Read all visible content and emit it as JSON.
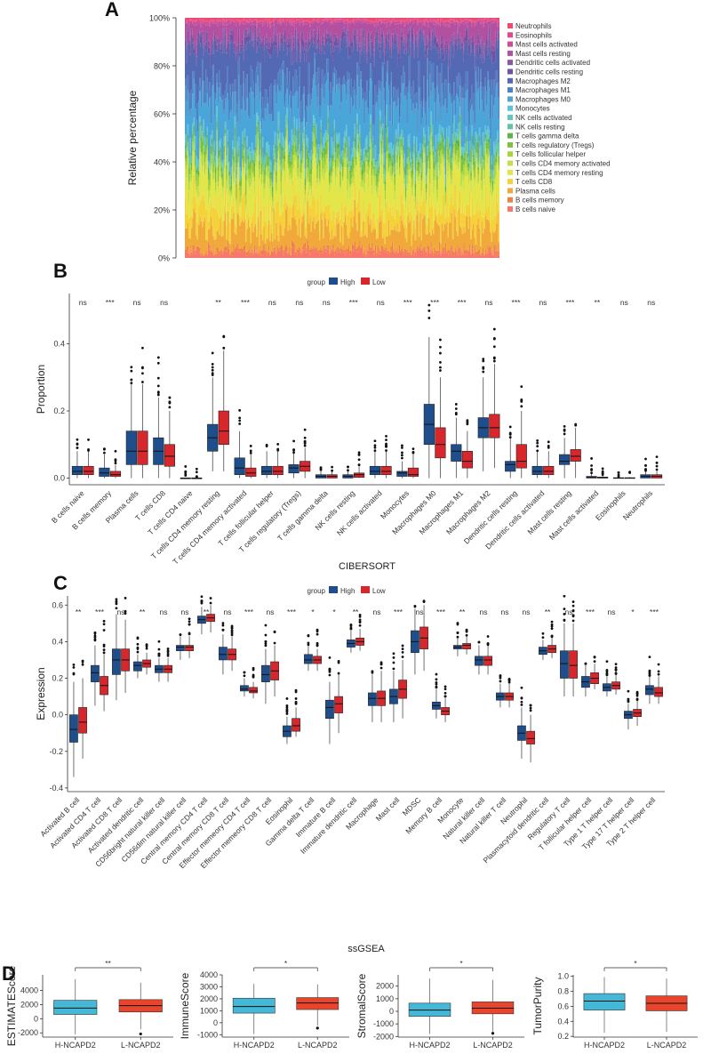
{
  "colors": {
    "high": "#1f4e8c",
    "low": "#d7262c",
    "h_ncapd2": "#45b8d8",
    "l_ncapd2": "#e8452c",
    "axis": "#333333"
  },
  "chart_data": [
    {
      "id": "A",
      "panel_label": "A",
      "type": "area",
      "ylabel": "Relative percentage",
      "ytick_labels": [
        "0%",
        "20%",
        "40%",
        "60%",
        "80%",
        "100%"
      ],
      "ylim": [
        0,
        100
      ],
      "n_samples": 260,
      "series": [
        {
          "name": "B cells naive",
          "color": "#f8766d",
          "mean": 2.5
        },
        {
          "name": "B cells memory",
          "color": "#ed8141",
          "mean": 1.5
        },
        {
          "name": "Plasma cells",
          "color": "#f2a93b",
          "mean": 9
        },
        {
          "name": "T cells CD8",
          "color": "#f5d13a",
          "mean": 8.5
        },
        {
          "name": "T cells CD4 memory resting",
          "color": "#e3e649",
          "mean": 12
        },
        {
          "name": "T cells CD4 memory activated",
          "color": "#c6e04a",
          "mean": 3
        },
        {
          "name": "T cells follicular helper",
          "color": "#a8d53c",
          "mean": 3
        },
        {
          "name": "T cells regulatory (Tregs)",
          "color": "#7cc242",
          "mean": 3
        },
        {
          "name": "T cells gamma delta",
          "color": "#5db54a",
          "mean": 1.5
        },
        {
          "name": "NK cells resting",
          "color": "#61c3a4",
          "mean": 1
        },
        {
          "name": "NK cells activated",
          "color": "#5fc8c3",
          "mean": 2
        },
        {
          "name": "Monocytes",
          "color": "#58c4e0",
          "mean": 1.5
        },
        {
          "name": "Macrophages M0",
          "color": "#4aa6d8",
          "mean": 17
        },
        {
          "name": "Macrophages M1",
          "color": "#4d83c6",
          "mean": 7
        },
        {
          "name": "Macrophages M2",
          "color": "#5469b3",
          "mean": 15
        },
        {
          "name": "Dendritic cells resting",
          "color": "#6b56a6",
          "mean": 3
        },
        {
          "name": "Dendritic cells activated",
          "color": "#8a55a5",
          "mean": 2
        },
        {
          "name": "Mast cells resting",
          "color": "#b450a0",
          "mean": 6
        },
        {
          "name": "Mast cells activated",
          "color": "#d14b98",
          "mean": 1
        },
        {
          "name": "Eosinophils",
          "color": "#e2488f",
          "mean": 0.3
        },
        {
          "name": "Neutrophils",
          "color": "#ef4a6c",
          "mean": 1
        }
      ]
    },
    {
      "id": "B",
      "panel_label": "B",
      "type": "box",
      "legend_title": "group",
      "legend": [
        "High",
        "Low"
      ],
      "ylabel": "Proportion",
      "xlabel": "CIBERSORT",
      "ylim": [
        -0.02,
        0.55
      ],
      "yticks": [
        0.0,
        0.2,
        0.4
      ],
      "ytick_labels": [
        "0.0",
        "0.2",
        "0.4"
      ],
      "categories": [
        "B cells naive",
        "B cells memory",
        "Plasma cells",
        "T cells CD8",
        "T cells CD4 naive",
        "T cells CD4 memory resting",
        "T cells CD4 memory activated",
        "T cells follicular helper",
        "T cells regulatory (Tregs)",
        "T cells gamma delta",
        "NK cells resting",
        "NK cells activated",
        "Monocytes",
        "Macrophages M0",
        "Macrophages M1",
        "Macrophages M2",
        "Dendritic cells resting",
        "Dendritic cells activated",
        "Mast cells resting",
        "Mast cells activated",
        "Eosinophils",
        "Neutrophils"
      ],
      "significance": [
        "ns",
        "***",
        "ns",
        "ns",
        "",
        "**",
        "***",
        "ns",
        "ns",
        "ns",
        "***",
        "ns",
        "***",
        "***",
        "***",
        "ns",
        "***",
        "ns",
        "***",
        "**",
        "ns",
        "ns"
      ],
      "high": [
        [
          0,
          0.01,
          0.02,
          0.035,
          0.08
        ],
        [
          0,
          0.005,
          0.015,
          0.03,
          0.07
        ],
        [
          0,
          0.04,
          0.08,
          0.14,
          0.28
        ],
        [
          0,
          0.04,
          0.08,
          0.12,
          0.24
        ],
        [
          0,
          0,
          0,
          0,
          0
        ],
        [
          0.02,
          0.08,
          0.12,
          0.16,
          0.3
        ],
        [
          0,
          0.01,
          0.03,
          0.06,
          0.14
        ],
        [
          0,
          0.01,
          0.02,
          0.035,
          0.08
        ],
        [
          0,
          0.015,
          0.03,
          0.04,
          0.075
        ],
        [
          0,
          0,
          0.005,
          0.01,
          0.02
        ],
        [
          0,
          0,
          0.005,
          0.01,
          0.02
        ],
        [
          0,
          0.01,
          0.02,
          0.035,
          0.08
        ],
        [
          0,
          0.005,
          0.015,
          0.02,
          0.05
        ],
        [
          0,
          0.1,
          0.16,
          0.22,
          0.42
        ],
        [
          0,
          0.05,
          0.08,
          0.1,
          0.18
        ],
        [
          0.02,
          0.12,
          0.15,
          0.18,
          0.3
        ],
        [
          0,
          0.02,
          0.04,
          0.05,
          0.12
        ],
        [
          0,
          0.01,
          0.02,
          0.035,
          0.08
        ],
        [
          0,
          0.04,
          0.05,
          0.07,
          0.12
        ],
        [
          0,
          0,
          0.002,
          0.005,
          0.012
        ],
        [
          0,
          0,
          0,
          0.001,
          0.003
        ],
        [
          0,
          0,
          0.005,
          0.01,
          0.02
        ]
      ],
      "low": [
        [
          0,
          0.01,
          0.02,
          0.035,
          0.08
        ],
        [
          0,
          0.005,
          0.01,
          0.02,
          0.04
        ],
        [
          0,
          0.04,
          0.08,
          0.14,
          0.28
        ],
        [
          0,
          0.035,
          0.065,
          0.1,
          0.2
        ],
        [
          0,
          0,
          0,
          0,
          0
        ],
        [
          0.02,
          0.1,
          0.14,
          0.2,
          0.38
        ],
        [
          0,
          0.005,
          0.015,
          0.03,
          0.07
        ],
        [
          0,
          0.01,
          0.02,
          0.035,
          0.08
        ],
        [
          0,
          0.02,
          0.035,
          0.05,
          0.09
        ],
        [
          0,
          0,
          0.005,
          0.01,
          0.02
        ],
        [
          0,
          0.002,
          0.01,
          0.015,
          0.035
        ],
        [
          0,
          0.01,
          0.02,
          0.035,
          0.08
        ],
        [
          0,
          0.005,
          0.01,
          0.03,
          0.07
        ],
        [
          0,
          0.06,
          0.1,
          0.15,
          0.3
        ],
        [
          0,
          0.03,
          0.05,
          0.08,
          0.14
        ],
        [
          0.03,
          0.12,
          0.15,
          0.19,
          0.34
        ],
        [
          0,
          0.03,
          0.05,
          0.1,
          0.2
        ],
        [
          0,
          0.01,
          0.02,
          0.035,
          0.08
        ],
        [
          0,
          0.05,
          0.065,
          0.085,
          0.15
        ],
        [
          0,
          0,
          0.001,
          0.003,
          0.008
        ],
        [
          0,
          0,
          0,
          0.001,
          0.003
        ],
        [
          0,
          0,
          0.005,
          0.01,
          0.02
        ]
      ]
    },
    {
      "id": "C",
      "panel_label": "C",
      "type": "box",
      "legend_title": "group",
      "legend": [
        "High",
        "Low"
      ],
      "ylabel": "Expression",
      "xlabel": "ssGSEA",
      "ylim": [
        -0.42,
        0.65
      ],
      "yticks": [
        -0.4,
        -0.2,
        0.0,
        0.2,
        0.4,
        0.6
      ],
      "ytick_labels": [
        "-0.4",
        "-0.2",
        "0.0",
        "0.2",
        "0.4",
        "0.6"
      ],
      "categories": [
        "Activated B cell",
        "Activated CD4 T cell",
        "Activated CD8 T cell",
        "Activated dendritic cell",
        "CD56bright natural killer cell",
        "CD56dim natural killer cell",
        "Central memory CD4 T cell",
        "Central memory CD8 T cell",
        "Effector memeory CD4 T cell",
        "Effector memeory CD8 T cell",
        "Eosinophil",
        "Gamma delta T cell",
        "Immature  B cell",
        "Immature dendritic cell",
        "Macrophage",
        "Mast cell",
        "MDSC",
        "Memory B cell",
        "Monocyte",
        "Natural killer cell",
        "Natural killer T cell",
        "Neutrophil",
        "Plasmacytoid dendritic cell",
        "Regulatory T cell",
        "T follicular helper cell",
        "Type 1 T helper cell",
        "Type 17 T helper cell",
        "Type 2 T helper cell"
      ],
      "significance": [
        "**",
        "***",
        "ns",
        "**",
        "ns",
        "ns",
        "**",
        "ns",
        "***",
        "ns",
        "***",
        "*",
        "*",
        "**",
        "ns",
        "***",
        "ns",
        "***",
        "**",
        "ns",
        "ns",
        "ns",
        "**",
        "ns",
        "***",
        "ns",
        "*",
        "***"
      ],
      "high": [
        [
          -0.34,
          -0.15,
          -0.08,
          0.0,
          0.18
        ],
        [
          0.05,
          0.18,
          0.23,
          0.27,
          0.38
        ],
        [
          0.08,
          0.22,
          0.3,
          0.36,
          0.55
        ],
        [
          0.2,
          0.24,
          0.27,
          0.29,
          0.33
        ],
        [
          0.18,
          0.23,
          0.25,
          0.27,
          0.31
        ],
        [
          0.3,
          0.35,
          0.37,
          0.38,
          0.43
        ],
        [
          0.44,
          0.5,
          0.52,
          0.54,
          0.59
        ],
        [
          0.22,
          0.3,
          0.33,
          0.37,
          0.44
        ],
        [
          0.1,
          0.13,
          0.14,
          0.16,
          0.2
        ],
        [
          0.06,
          0.18,
          0.22,
          0.27,
          0.36
        ],
        [
          -0.16,
          -0.12,
          -0.09,
          -0.06,
          -0.01
        ],
        [
          0.24,
          0.28,
          0.3,
          0.33,
          0.38
        ],
        [
          -0.16,
          -0.02,
          0.04,
          0.08,
          0.18
        ],
        [
          0.34,
          0.37,
          0.39,
          0.41,
          0.46
        ],
        [
          -0.04,
          0.05,
          0.09,
          0.12,
          0.22
        ],
        [
          -0.04,
          0.06,
          0.1,
          0.14,
          0.24
        ],
        [
          0.22,
          0.34,
          0.4,
          0.46,
          0.58
        ],
        [
          -0.02,
          0.03,
          0.05,
          0.07,
          0.14
        ],
        [
          0.32,
          0.36,
          0.37,
          0.38,
          0.42
        ],
        [
          0.22,
          0.27,
          0.3,
          0.32,
          0.38
        ],
        [
          0.04,
          0.08,
          0.1,
          0.12,
          0.17
        ],
        [
          -0.24,
          -0.14,
          -0.1,
          -0.06,
          0.04
        ],
        [
          0.3,
          0.33,
          0.35,
          0.37,
          0.41
        ],
        [
          0.1,
          0.2,
          0.28,
          0.35,
          0.5
        ],
        [
          0.1,
          0.15,
          0.18,
          0.21,
          0.27
        ],
        [
          0.1,
          0.13,
          0.15,
          0.17,
          0.21
        ],
        [
          -0.08,
          -0.02,
          0.0,
          0.02,
          0.06
        ],
        [
          0.06,
          0.11,
          0.14,
          0.16,
          0.21
        ]
      ],
      "low": [
        [
          -0.24,
          -0.1,
          -0.04,
          0.04,
          0.2
        ],
        [
          0.02,
          0.11,
          0.16,
          0.21,
          0.33
        ],
        [
          0.12,
          0.24,
          0.3,
          0.36,
          0.52
        ],
        [
          0.22,
          0.26,
          0.28,
          0.3,
          0.34
        ],
        [
          0.18,
          0.23,
          0.25,
          0.27,
          0.31
        ],
        [
          0.31,
          0.35,
          0.37,
          0.38,
          0.43
        ],
        [
          0.45,
          0.51,
          0.53,
          0.55,
          0.6
        ],
        [
          0.24,
          0.3,
          0.33,
          0.36,
          0.43
        ],
        [
          0.09,
          0.12,
          0.13,
          0.15,
          0.18
        ],
        [
          0.1,
          0.19,
          0.24,
          0.29,
          0.38
        ],
        [
          -0.12,
          -0.09,
          -0.06,
          -0.02,
          0.04
        ],
        [
          0.24,
          0.28,
          0.3,
          0.32,
          0.36
        ],
        [
          -0.1,
          0.01,
          0.06,
          0.1,
          0.22
        ],
        [
          0.35,
          0.38,
          0.4,
          0.42,
          0.47
        ],
        [
          -0.04,
          0.05,
          0.09,
          0.13,
          0.24
        ],
        [
          -0.02,
          0.09,
          0.14,
          0.19,
          0.3
        ],
        [
          0.24,
          0.36,
          0.42,
          0.48,
          0.6
        ],
        [
          -0.04,
          0.0,
          0.02,
          0.04,
          0.09
        ],
        [
          0.33,
          0.36,
          0.38,
          0.39,
          0.43
        ],
        [
          0.22,
          0.27,
          0.3,
          0.32,
          0.38
        ],
        [
          0.04,
          0.08,
          0.1,
          0.12,
          0.17
        ],
        [
          -0.26,
          -0.16,
          -0.13,
          -0.09,
          0.0
        ],
        [
          0.31,
          0.34,
          0.36,
          0.38,
          0.42
        ],
        [
          0.1,
          0.2,
          0.27,
          0.35,
          0.5
        ],
        [
          0.14,
          0.17,
          0.2,
          0.23,
          0.28
        ],
        [
          0.11,
          0.14,
          0.16,
          0.18,
          0.22
        ],
        [
          -0.06,
          -0.01,
          0.01,
          0.03,
          0.08
        ],
        [
          0.06,
          0.1,
          0.12,
          0.15,
          0.21
        ]
      ]
    },
    {
      "id": "D1",
      "panel_label": "D",
      "type": "box",
      "ylabel": "ESTIMATEScore",
      "categories": [
        "H-NCAPD2",
        "L-NCAPD2"
      ],
      "significance": "**",
      "ylim": [
        -2600,
        6200
      ],
      "yticks": [
        -2000,
        0,
        2000,
        4000
      ],
      "ytick_labels": [
        "-2000",
        "0",
        "2000",
        "4000"
      ],
      "boxes": [
        [
          -2200,
          600,
          1500,
          2600,
          5600
        ],
        [
          -1500,
          950,
          1850,
          2700,
          5100
        ]
      ],
      "outliers": [
        [],
        [
          -2150
        ]
      ]
    },
    {
      "id": "D2",
      "type": "box",
      "ylabel": "ImmuneScore",
      "categories": [
        "H-NCAPD2",
        "L-NCAPD2"
      ],
      "significance": "*",
      "ylim": [
        -1200,
        4000
      ],
      "yticks": [
        -1000,
        0,
        1000,
        2000,
        3000,
        4000
      ],
      "ytick_labels": [
        "-1000",
        "0",
        "1000",
        "2000",
        "3000",
        "4000"
      ],
      "boxes": [
        [
          -950,
          800,
          1350,
          2050,
          3250
        ],
        [
          -250,
          1100,
          1650,
          2100,
          3200
        ]
      ],
      "outliers": [
        [],
        [
          -450
        ]
      ]
    },
    {
      "id": "D3",
      "type": "box",
      "ylabel": "StromalScore",
      "categories": [
        "H-NCAPD2",
        "L-NCAPD2"
      ],
      "significance": "*",
      "ylim": [
        -2050,
        2900
      ],
      "yticks": [
        -2000,
        -1000,
        0,
        1000,
        2000
      ],
      "ytick_labels": [
        "-2000",
        "-1000",
        "0",
        "1000",
        "2000"
      ],
      "boxes": [
        [
          -1800,
          -400,
          100,
          650,
          2600
        ],
        [
          -1600,
          -200,
          250,
          750,
          2500
        ]
      ],
      "outliers": [
        [],
        [
          -1750
        ]
      ]
    },
    {
      "id": "D4",
      "type": "box",
      "ylabel": "TumorPurity",
      "categories": [
        "H-NCAPD2",
        "L-NCAPD2"
      ],
      "significance": "*",
      "ylim": [
        0.19,
        1.02
      ],
      "yticks": [
        0.2,
        0.4,
        0.6,
        0.8,
        1.0
      ],
      "ytick_labels": [
        "0.2",
        "0.4",
        "0.6",
        "0.8",
        "1.0"
      ],
      "boxes": [
        [
          0.25,
          0.55,
          0.67,
          0.77,
          0.99
        ],
        [
          0.26,
          0.54,
          0.64,
          0.74,
          0.97
        ]
      ],
      "outliers": [
        [],
        []
      ]
    }
  ]
}
